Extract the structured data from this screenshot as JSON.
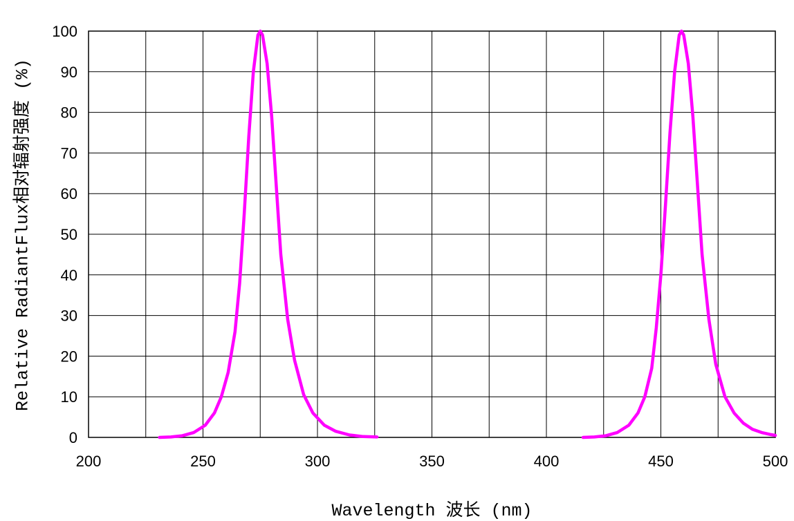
{
  "chart_data": {
    "type": "line",
    "xlabel": "Wavelength 波长  (nm)",
    "ylabel": "Relative RadiantFlux相对辐射强度 (%)",
    "xlim": [
      200,
      500
    ],
    "ylim": [
      0,
      100
    ],
    "x_ticks": [
      200,
      250,
      300,
      350,
      400,
      450,
      500
    ],
    "y_ticks": [
      0,
      10,
      20,
      30,
      40,
      50,
      60,
      70,
      80,
      90,
      100
    ],
    "grid": true,
    "grid_x_step": 25,
    "grid_y_step": 10,
    "series_color": "#ff00ff",
    "series": [
      {
        "x": [
          231,
          236,
          241,
          246,
          251,
          255,
          258,
          261,
          264,
          266,
          268,
          270,
          272,
          274,
          275,
          276,
          278,
          280,
          282,
          284,
          287,
          290,
          294,
          298,
          303,
          308,
          314,
          320,
          326
        ],
        "y": [
          0,
          0.1,
          0.4,
          1.2,
          3,
          6,
          10,
          16,
          26,
          38,
          55,
          74,
          90,
          99,
          100,
          99,
          92,
          79,
          62,
          45,
          29,
          19,
          10.5,
          6,
          3,
          1.5,
          0.6,
          0.2,
          0.1
        ]
      },
      {
        "x": [
          416,
          421,
          426,
          431,
          436,
          440,
          443,
          446,
          448,
          450,
          452,
          454,
          456,
          458,
          459,
          460,
          462,
          464,
          466,
          468,
          471,
          474,
          478,
          482,
          486,
          490,
          494,
          498,
          500
        ],
        "y": [
          0,
          0.1,
          0.4,
          1.2,
          3,
          6,
          10,
          17,
          27,
          40,
          57,
          75,
          90,
          99,
          100,
          99,
          92,
          79,
          62,
          45,
          29,
          18,
          10,
          6,
          3.5,
          2,
          1.2,
          0.7,
          0.5
        ]
      }
    ]
  }
}
